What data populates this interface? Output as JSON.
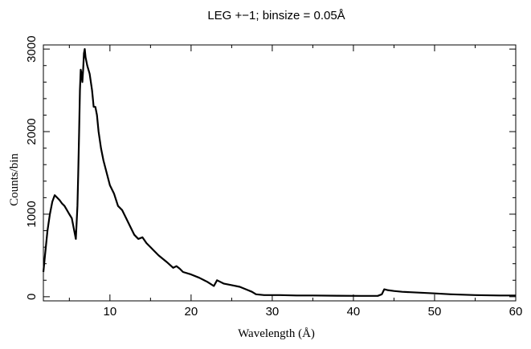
{
  "chart_data": {
    "type": "line",
    "title": "LEG +−1; binsize = 0.05Å",
    "xlabel": "Wavelength (Å)",
    "ylabel": "Counts/bin",
    "xlim": [
      1.8,
      60
    ],
    "ylim": [
      -50,
      3050
    ],
    "x_ticks": [
      10,
      20,
      30,
      40,
      50,
      60
    ],
    "y_ticks": [
      0,
      1000,
      2000,
      3000
    ],
    "grid": false,
    "series": [
      {
        "color": "#000000",
        "x": [
          1.8,
          2.0,
          2.3,
          2.6,
          2.9,
          3.2,
          3.5,
          3.8,
          4.1,
          4.4,
          4.7,
          5.0,
          5.3,
          5.6,
          5.8,
          6.0,
          6.1,
          6.2,
          6.3,
          6.4,
          6.5,
          6.6,
          6.7,
          6.8,
          6.9,
          7.0,
          7.2,
          7.5,
          7.8,
          8.0,
          8.2,
          8.4,
          8.6,
          8.9,
          9.2,
          9.6,
          10.0,
          10.5,
          11.0,
          11.5,
          12.0,
          12.5,
          13.0,
          13.5,
          14.0,
          14.5,
          15.0,
          15.5,
          16.0,
          17.0,
          17.8,
          18.2,
          18.6,
          19.0,
          20.0,
          21.0,
          22.0,
          22.8,
          23.2,
          23.6,
          24.0,
          25.0,
          26.0,
          27.0,
          27.5,
          28.0,
          29.0,
          30.0,
          31.0,
          33.0,
          35.0,
          38.0,
          41.0,
          43.0,
          43.5,
          43.8,
          44.2,
          45.0,
          46.0,
          48.0,
          50.0,
          52.0,
          55.0,
          58.0,
          60.0
        ],
        "y": [
          300,
          500,
          800,
          1000,
          1150,
          1230,
          1200,
          1170,
          1130,
          1100,
          1050,
          1000,
          950,
          800,
          700,
          1100,
          1500,
          2000,
          2500,
          2750,
          2700,
          2600,
          2750,
          2950,
          3000,
          2900,
          2800,
          2700,
          2500,
          2300,
          2300,
          2200,
          2000,
          1800,
          1650,
          1500,
          1350,
          1250,
          1100,
          1050,
          950,
          850,
          750,
          700,
          720,
          650,
          600,
          550,
          500,
          420,
          350,
          370,
          340,
          300,
          270,
          230,
          180,
          130,
          200,
          180,
          160,
          140,
          120,
          80,
          60,
          30,
          20,
          20,
          20,
          15,
          15,
          12,
          10,
          10,
          30,
          90,
          80,
          70,
          60,
          50,
          40,
          30,
          20,
          15,
          15
        ]
      }
    ]
  }
}
